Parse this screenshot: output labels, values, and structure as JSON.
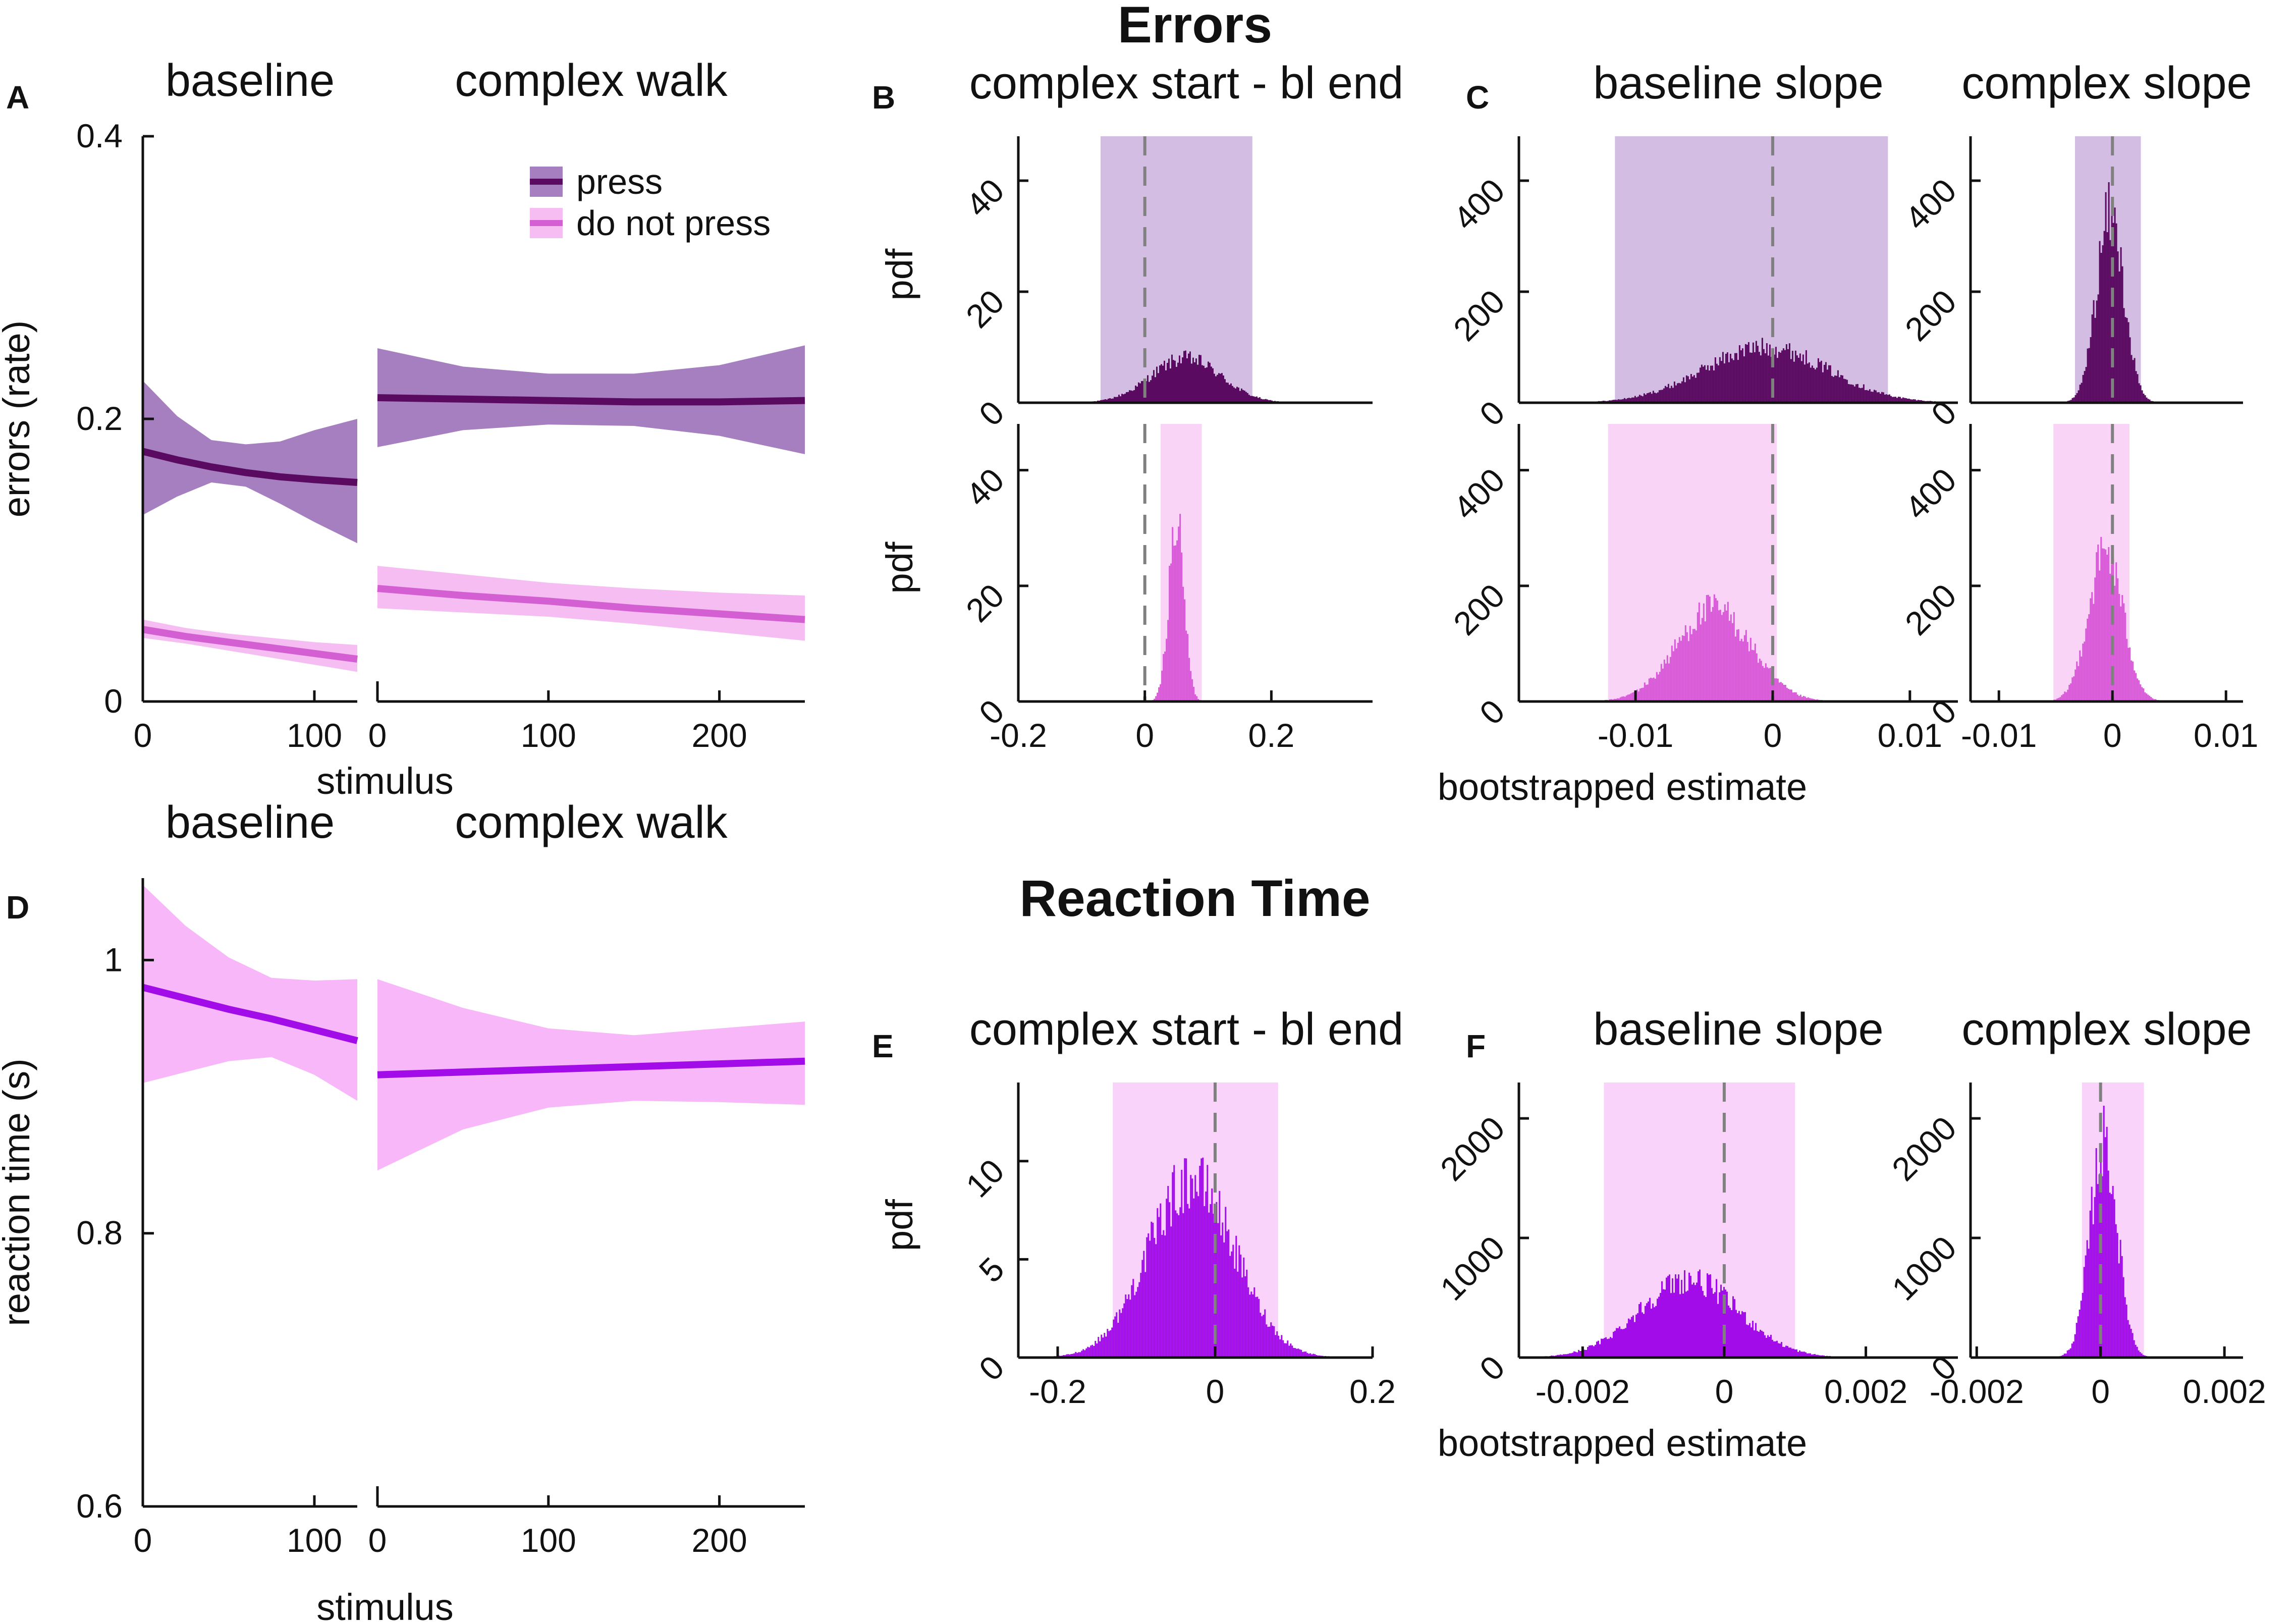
{
  "figure": {
    "errors_title": "Errors",
    "rt_title": "Reaction Time",
    "panel_letters": {
      "A": "A",
      "B": "B",
      "C": "C",
      "D": "D",
      "E": "E",
      "F": "F"
    }
  },
  "colors": {
    "press_line": "#5b0a61",
    "press_band": "#a67fc1",
    "press_hist": "#5b0a61",
    "press_ci": "#d3bde3",
    "nopress_line": "#d35fd3",
    "nopress_band": "#f5bdf2",
    "nopress_hist": "#d85ad8",
    "nopress_ci": "#f9d4f6",
    "rt_line": "#a20ce8",
    "rt_band": "#f8b7f8",
    "rt_hist": "#a20ce8",
    "rt_ci": "#f9d3f9",
    "dash": "#808080",
    "axis": "#111111"
  },
  "chart_data": [
    {
      "id": "A",
      "type": "line",
      "panel_label": "A",
      "titles": [
        "baseline",
        "complex walk"
      ],
      "ylabel": "errors (rate)",
      "xlabel": "stimulus",
      "ylim": [
        0,
        0.4
      ],
      "yticks": [
        0,
        0.2,
        0.4
      ],
      "ytick_labels": [
        "0",
        "0.2",
        "0.4"
      ],
      "segments": [
        {
          "name": "baseline",
          "xlim": [
            0,
            125
          ],
          "xticks": [
            0,
            100
          ],
          "xtick_labels": [
            "0",
            "100"
          ]
        },
        {
          "name": "complex walk",
          "xlim": [
            0,
            250
          ],
          "xticks": [
            0,
            100,
            200
          ],
          "xtick_labels": [
            "0",
            "100",
            "200"
          ]
        }
      ],
      "legend": [
        "press",
        "do not press"
      ],
      "legend_position": "top-right",
      "series": [
        {
          "name": "press",
          "segment": "baseline",
          "x": [
            0,
            20,
            40,
            60,
            80,
            100,
            125
          ],
          "y": [
            0.177,
            0.171,
            0.166,
            0.162,
            0.159,
            0.157,
            0.155
          ],
          "lower": [
            0.132,
            0.145,
            0.155,
            0.152,
            0.14,
            0.127,
            0.112
          ],
          "upper": [
            0.227,
            0.202,
            0.185,
            0.182,
            0.184,
            0.192,
            0.2
          ]
        },
        {
          "name": "press",
          "segment": "complex walk",
          "x": [
            0,
            50,
            100,
            150,
            200,
            250
          ],
          "y": [
            0.215,
            0.214,
            0.213,
            0.212,
            0.212,
            0.213
          ],
          "lower": [
            0.18,
            0.192,
            0.196,
            0.195,
            0.188,
            0.175
          ],
          "upper": [
            0.25,
            0.237,
            0.232,
            0.232,
            0.238,
            0.252
          ]
        },
        {
          "name": "do not press",
          "segment": "baseline",
          "x": [
            0,
            25,
            50,
            75,
            100,
            125
          ],
          "y": [
            0.051,
            0.046,
            0.042,
            0.038,
            0.034,
            0.03
          ],
          "lower": [
            0.045,
            0.041,
            0.036,
            0.031,
            0.026,
            0.021
          ],
          "upper": [
            0.058,
            0.052,
            0.048,
            0.045,
            0.042,
            0.04
          ]
        },
        {
          "name": "do not press",
          "segment": "complex walk",
          "x": [
            0,
            50,
            100,
            150,
            200,
            250
          ],
          "y": [
            0.08,
            0.075,
            0.071,
            0.066,
            0.062,
            0.058
          ],
          "lower": [
            0.066,
            0.063,
            0.06,
            0.055,
            0.049,
            0.043
          ],
          "upper": [
            0.096,
            0.09,
            0.084,
            0.08,
            0.077,
            0.075
          ]
        }
      ]
    },
    {
      "id": "B",
      "type": "histogram",
      "panel_label": "B",
      "title": "complex start - bl end",
      "ylabel": "pdf",
      "xlim": [
        -0.2,
        0.36
      ],
      "xticks": [
        -0.2,
        0,
        0.2
      ],
      "xtick_labels": [
        "-0.2",
        "0",
        "0.2"
      ],
      "ylim": [
        0,
        48
      ],
      "yticks": [
        0,
        20,
        40
      ],
      "ytick_labels": [
        "0",
        "20",
        "40"
      ],
      "histograms": [
        {
          "condition": "press",
          "row": "top",
          "mean": 0.065,
          "sd": 0.055,
          "peak_pdf": 8,
          "ci": [
            -0.07,
            0.17
          ],
          "reference_line": 0
        },
        {
          "condition": "do not press",
          "row": "bottom",
          "mean": 0.05,
          "sd": 0.012,
          "peak_pdf": 31,
          "ci": [
            0.025,
            0.09
          ],
          "reference_line": 0
        }
      ]
    },
    {
      "id": "C-left",
      "type": "histogram",
      "panel_label": "C",
      "title": "baseline slope",
      "xlabel": "bootstrapped estimate",
      "xlim": [
        -0.0185,
        0.0135
      ],
      "xticks": [
        -0.01,
        0,
        0.01
      ],
      "xtick_labels": [
        "-0.01",
        "0",
        "0.01"
      ],
      "ylim": [
        0,
        480
      ],
      "yticks": [
        0,
        200,
        400
      ],
      "ytick_labels": [
        "0",
        "200",
        "400"
      ],
      "histograms": [
        {
          "condition": "press",
          "row": "top",
          "mean": -0.0005,
          "sd": 0.0045,
          "peak_pdf": 100,
          "ci": [
            -0.0115,
            0.0084
          ],
          "reference_line": 0
        },
        {
          "condition": "do not press",
          "row": "bottom",
          "mean": -0.0043,
          "sd": 0.0027,
          "peak_pdf": 160,
          "ci": [
            -0.012,
            0.0003
          ],
          "reference_line": 0
        }
      ]
    },
    {
      "id": "C-right",
      "type": "histogram",
      "title": "complex slope",
      "xlim": [
        -0.0125,
        0.0115
      ],
      "xticks": [
        -0.01,
        0,
        0.01
      ],
      "xtick_labels": [
        "-0.01",
        "0",
        "0.01"
      ],
      "ylim": [
        0,
        480
      ],
      "yticks": [
        0,
        200,
        400
      ],
      "ytick_labels": [
        "0",
        "200",
        "400"
      ],
      "histograms": [
        {
          "condition": "press",
          "row": "top",
          "mean": -0.0002,
          "sd": 0.0012,
          "peak_pdf": 340,
          "ci": [
            -0.0033,
            0.0025
          ],
          "reference_line": 0
        },
        {
          "condition": "do not press",
          "row": "bottom",
          "mean": -0.0006,
          "sd": 0.0015,
          "peak_pdf": 260,
          "ci": [
            -0.0052,
            0.0015
          ],
          "reference_line": 0
        }
      ]
    },
    {
      "id": "D",
      "type": "line",
      "panel_label": "D",
      "titles": [
        "baseline",
        "complex walk"
      ],
      "ylabel": "reaction time (s)",
      "xlabel": "stimulus",
      "ylim": [
        0.6,
        1.06
      ],
      "yticks": [
        0.6,
        0.8,
        1.0
      ],
      "ytick_labels": [
        "0.6",
        "0.8",
        "1"
      ],
      "segments": [
        {
          "name": "baseline",
          "xlim": [
            0,
            125
          ],
          "xticks": [
            0,
            100
          ],
          "xtick_labels": [
            "0",
            "100"
          ]
        },
        {
          "name": "complex walk",
          "xlim": [
            0,
            250
          ],
          "xticks": [
            0,
            100,
            200
          ],
          "xtick_labels": [
            "0",
            "100",
            "200"
          ]
        }
      ],
      "series": [
        {
          "name": "reaction time",
          "segment": "baseline",
          "x": [
            0,
            25,
            50,
            75,
            100,
            125
          ],
          "y": [
            0.98,
            0.972,
            0.964,
            0.957,
            0.949,
            0.941
          ],
          "lower": [
            0.91,
            0.918,
            0.926,
            0.929,
            0.916,
            0.897
          ],
          "upper": [
            1.055,
            1.025,
            1.002,
            0.987,
            0.985,
            0.986
          ]
        },
        {
          "name": "reaction time",
          "segment": "complex walk",
          "x": [
            0,
            50,
            100,
            150,
            200,
            250
          ],
          "y": [
            0.916,
            0.918,
            0.92,
            0.922,
            0.924,
            0.926
          ],
          "lower": [
            0.846,
            0.876,
            0.892,
            0.897,
            0.896,
            0.894
          ],
          "upper": [
            0.986,
            0.965,
            0.95,
            0.945,
            0.95,
            0.955
          ]
        }
      ]
    },
    {
      "id": "E",
      "type": "histogram",
      "panel_label": "E",
      "title": "complex start - bl end",
      "ylabel": "pdf",
      "xlim": [
        -0.25,
        0.2
      ],
      "xticks": [
        -0.2,
        0,
        0.2
      ],
      "xtick_labels": [
        "-0.2",
        "0",
        "0.2"
      ],
      "ylim": [
        0,
        14
      ],
      "yticks": [
        0,
        5,
        10
      ],
      "ytick_labels": [
        "0",
        "5",
        "10"
      ],
      "histograms": [
        {
          "condition": "reaction time",
          "row": "single",
          "mean": -0.03,
          "sd": 0.055,
          "peak_pdf": 9,
          "ci": [
            -0.13,
            0.08
          ],
          "reference_line": 0
        }
      ]
    },
    {
      "id": "F-left",
      "type": "histogram",
      "panel_label": "F",
      "title": "baseline slope",
      "xlabel": "bootstrapped estimate",
      "xlim": [
        -0.0029,
        0.0033
      ],
      "xticks": [
        -0.002,
        0,
        0.002
      ],
      "xtick_labels": [
        "-0.002",
        "0",
        "0.002"
      ],
      "ylim": [
        0,
        2300
      ],
      "yticks": [
        0,
        1000,
        2000
      ],
      "ytick_labels": [
        "0",
        "1000",
        "2000"
      ],
      "histograms": [
        {
          "condition": "reaction time",
          "row": "single",
          "mean": -0.0005,
          "sd": 0.0007,
          "peak_pdf": 650,
          "ci": [
            -0.0017,
            0.001
          ],
          "reference_line": 0
        }
      ]
    },
    {
      "id": "F-right",
      "type": "histogram",
      "title": "complex slope",
      "xlim": [
        -0.0021,
        0.0023
      ],
      "xticks": [
        -0.002,
        0,
        0.002
      ],
      "xtick_labels": [
        "-0.002",
        "0",
        "0.002"
      ],
      "ylim": [
        0,
        2300
      ],
      "yticks": [
        0,
        1000,
        2000
      ],
      "ytick_labels": [
        "0",
        "1000",
        "2000"
      ],
      "histograms": [
        {
          "condition": "reaction time",
          "row": "single",
          "mean": 5e-05,
          "sd": 0.00022,
          "peak_pdf": 1800,
          "ci": [
            -0.0003,
            0.0007
          ],
          "reference_line": 0
        }
      ]
    }
  ]
}
